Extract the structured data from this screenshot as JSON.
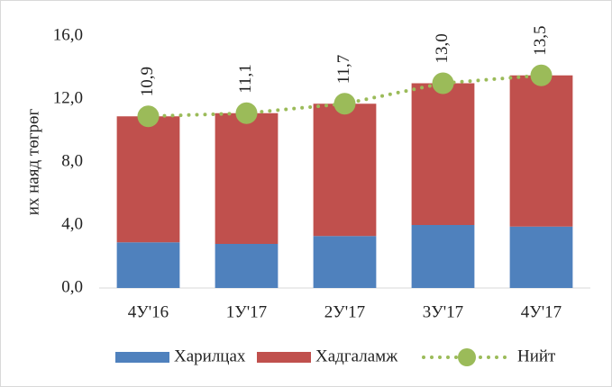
{
  "chart_data": {
    "type": "bar",
    "stacked": true,
    "y_label": "их наяд төгрөг",
    "categories": [
      "4У'16",
      "1У'17",
      "2У'17",
      "3У'17",
      "4У'17"
    ],
    "series": [
      {
        "name": "Харилцах",
        "type": "bar",
        "color": "#4f81bd",
        "values": [
          2.9,
          2.8,
          3.3,
          4.0,
          3.9
        ]
      },
      {
        "name": "Хадгаламж",
        "type": "bar",
        "color": "#c0504d",
        "values": [
          8.0,
          8.3,
          8.4,
          9.0,
          9.6
        ]
      },
      {
        "name": "Нийт",
        "type": "line",
        "color": "#9bbb59",
        "values": [
          10.9,
          11.1,
          11.7,
          13.0,
          13.5
        ],
        "value_labels": [
          "10,9",
          "11,1",
          "11,7",
          "13,0",
          "13,5"
        ]
      }
    ],
    "ylim": [
      0,
      16
    ],
    "yticks": [
      {
        "value": 0,
        "label": "0,0"
      },
      {
        "value": 4,
        "label": "4,0"
      },
      {
        "value": 8,
        "label": "8,0"
      },
      {
        "value": 12,
        "label": "12,0"
      },
      {
        "value": 16,
        "label": "16,0"
      }
    ],
    "grid": false,
    "legend": "bottom"
  }
}
